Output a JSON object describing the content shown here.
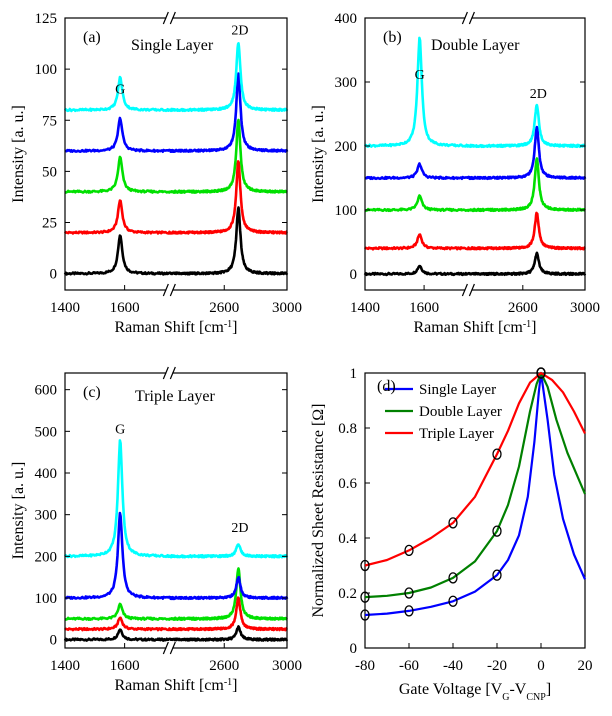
{
  "chart_data": [
    {
      "type": "line",
      "panel_label": "(a)",
      "title": "Single Layer",
      "xlabel": "Raman Shift [cm⁻¹]",
      "ylabel": "Intensity [a. u.]",
      "x_tick_labels": [
        "1400",
        "1600",
        "2600",
        "3000"
      ],
      "x_break": true,
      "ylim": [
        -8,
        125
      ],
      "y_ticks": [
        0,
        25,
        50,
        75,
        100,
        125
      ],
      "peak_labels": [
        {
          "text": "G",
          "x": 1585,
          "y": 88
        },
        {
          "text": "2D",
          "x": 2700,
          "y": 117
        }
      ],
      "series": [
        {
          "color": "#000000",
          "baseline": 0,
          "g_height": 19,
          "d2_height": 32
        },
        {
          "color": "#ff0000",
          "baseline": 20,
          "g_height": 16,
          "d2_height": 35
        },
        {
          "color": "#00e000",
          "baseline": 40,
          "g_height": 17,
          "d2_height": 35
        },
        {
          "color": "#0000ff",
          "baseline": 60,
          "g_height": 16,
          "d2_height": 38
        },
        {
          "color": "#00ffff",
          "baseline": 80,
          "g_height": 16,
          "d2_height": 33
        }
      ]
    },
    {
      "type": "line",
      "panel_label": "(b)",
      "title": "Double Layer",
      "xlabel": "Raman Shift [cm⁻¹]",
      "ylabel": "Intensity [a. u.]",
      "x_tick_labels": [
        "1400",
        "1600",
        "2600",
        "3000"
      ],
      "x_break": true,
      "ylim": [
        -25,
        400
      ],
      "y_ticks": [
        0,
        100,
        200,
        300,
        400
      ],
      "peak_labels": [
        {
          "text": "G",
          "x": 1585,
          "y": 305
        },
        {
          "text": "2D",
          "x": 2700,
          "y": 275
        }
      ],
      "series": [
        {
          "color": "#000000",
          "baseline": 0,
          "g_height": 13,
          "d2_height": 32
        },
        {
          "color": "#ff0000",
          "baseline": 40,
          "g_height": 22,
          "d2_height": 55
        },
        {
          "color": "#00e000",
          "baseline": 100,
          "g_height": 22,
          "d2_height": 80
        },
        {
          "color": "#0000ff",
          "baseline": 150,
          "g_height": 22,
          "d2_height": 80
        },
        {
          "color": "#00ffff",
          "baseline": 200,
          "g_height": 170,
          "d2_height": 65
        }
      ]
    },
    {
      "type": "line",
      "panel_label": "(c)",
      "title": "Triple Layer",
      "xlabel": "Raman Shift [cm⁻¹]",
      "ylabel": "Intensity [a. u.]",
      "x_tick_labels": [
        "1400",
        "1600",
        "2600",
        "3000"
      ],
      "x_break": true,
      "ylim": [
        -20,
        640
      ],
      "y_ticks": [
        0,
        100,
        200,
        300,
        400,
        500,
        600
      ],
      "peak_labels": [
        {
          "text": "G",
          "x": 1585,
          "y": 495
        },
        {
          "text": "2D",
          "x": 2700,
          "y": 258
        }
      ],
      "series": [
        {
          "color": "#000000",
          "baseline": 0,
          "g_height": 25,
          "d2_height": 30
        },
        {
          "color": "#ff0000",
          "baseline": 25,
          "g_height": 28,
          "d2_height": 75
        },
        {
          "color": "#00e000",
          "baseline": 50,
          "g_height": 35,
          "d2_height": 120
        },
        {
          "color": "#0000ff",
          "baseline": 100,
          "g_height": 205,
          "d2_height": 50
        },
        {
          "color": "#00ffff",
          "baseline": 200,
          "g_height": 280,
          "d2_height": 30
        }
      ]
    },
    {
      "type": "line",
      "panel_label": "(d)",
      "xlabel": "Gate Voltage [V_G-V_CNP]",
      "xlabel_parts": {
        "lead": "Gate Voltage [V",
        "sub1": "G",
        "mid": "-V",
        "sub2": "CNP",
        "tail": "]"
      },
      "ylabel": "Normalized Sheet Resistance [Ω]",
      "xlim": [
        -80,
        20
      ],
      "ylim": [
        0,
        1
      ],
      "x_ticks": [
        -80,
        -60,
        -40,
        -20,
        0,
        20
      ],
      "y_ticks": [
        0,
        0.2,
        0.4,
        0.6,
        0.8,
        1
      ],
      "y_tick_labels": [
        "0",
        "0.2",
        "0.4",
        "0.6",
        "0.8",
        "1"
      ],
      "legend": "top-left",
      "series": [
        {
          "name": "Single Layer",
          "color": "#0000ff",
          "x": [
            -80,
            -70,
            -60,
            -50,
            -40,
            -30,
            -20,
            -15,
            -10,
            -6,
            -3,
            -1,
            0,
            3,
            6,
            10,
            15,
            20
          ],
          "y": [
            0.12,
            0.125,
            0.135,
            0.15,
            0.17,
            0.205,
            0.265,
            0.32,
            0.41,
            0.55,
            0.75,
            0.93,
            1.0,
            0.83,
            0.63,
            0.47,
            0.34,
            0.25
          ],
          "markers_x": [
            -80,
            -60,
            -40,
            -20,
            0
          ],
          "markers_y": [
            0.12,
            0.135,
            0.17,
            0.265,
            1.0
          ]
        },
        {
          "name": "Double Layer",
          "color": "#008000",
          "x": [
            -80,
            -70,
            -60,
            -50,
            -40,
            -30,
            -20,
            -15,
            -10,
            -5,
            -2,
            0,
            3,
            7,
            12,
            20
          ],
          "y": [
            0.185,
            0.19,
            0.2,
            0.22,
            0.255,
            0.315,
            0.425,
            0.52,
            0.66,
            0.86,
            0.96,
            1.0,
            0.95,
            0.83,
            0.71,
            0.56
          ],
          "markers_x": [
            -80,
            -60,
            -40,
            -20,
            0
          ],
          "markers_y": [
            0.185,
            0.2,
            0.255,
            0.425,
            1.0
          ]
        },
        {
          "name": "Triple Layer",
          "color": "#ff0000",
          "x": [
            -80,
            -70,
            -60,
            -50,
            -40,
            -30,
            -20,
            -15,
            -10,
            -5,
            0,
            5,
            10,
            15,
            20
          ],
          "y": [
            0.3,
            0.32,
            0.355,
            0.4,
            0.455,
            0.55,
            0.705,
            0.79,
            0.89,
            0.965,
            1.0,
            0.975,
            0.93,
            0.86,
            0.78
          ],
          "markers_x": [
            -80,
            -60,
            -40,
            -20,
            0
          ],
          "markers_y": [
            0.3,
            0.355,
            0.455,
            0.705,
            1.0
          ]
        }
      ]
    }
  ]
}
